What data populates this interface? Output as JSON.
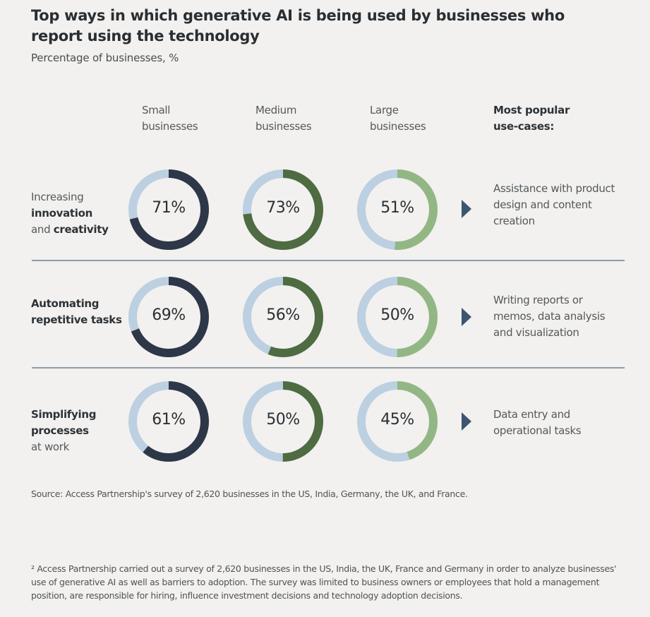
{
  "title": "Top ways in which generative AI is being used by businesses who report using the technology",
  "subtitle": "Percentage of businesses, %",
  "columns": [
    {
      "line1": "Small",
      "line2": "businesses"
    },
    {
      "line1": "Medium",
      "line2": "businesses"
    },
    {
      "line1": "Large",
      "line2": "businesses"
    }
  ],
  "use_case_header": {
    "line1": "Most popular",
    "line2": "use-cases:"
  },
  "rows": [
    {
      "label_parts": [
        {
          "text": "Increasing",
          "bold": false
        },
        {
          "text": "innovation",
          "bold": true
        },
        {
          "text": "and ",
          "bold": false,
          "inline_next": "creativity"
        }
      ],
      "label_lines": [
        "Increasing",
        "innovation",
        "and creativity"
      ],
      "use_case": [
        "Assistance with product",
        "design and content",
        "creation"
      ]
    },
    {
      "label_lines": [
        "Automating",
        "repetitive tasks"
      ],
      "use_case": [
        "Writing reports or",
        "memos, data analysis",
        "and visualization"
      ]
    },
    {
      "label_lines": [
        "Simplifying",
        "processes",
        "at work"
      ],
      "use_case": [
        "Data entry and",
        "operational tasks"
      ]
    }
  ],
  "colors": {
    "small": "#2d3748",
    "medium": "#4e6b42",
    "large": "#93b784",
    "remainder": "#bcd0e2",
    "arrow": "#3d5570",
    "separator": "#8f9ba6",
    "background": "#f2f1ef"
  },
  "chart_data": {
    "type": "donut-grid",
    "title": "Top ways in which generative AI is being used by businesses who report using the technology",
    "subtitle": "Percentage of businesses, %",
    "categories": [
      "Increasing innovation and creativity",
      "Automating repetitive tasks",
      "Simplifying processes at work"
    ],
    "series": [
      {
        "name": "Small businesses",
        "values": [
          71,
          69,
          61
        ],
        "labels": [
          "71%",
          "69%",
          "61%"
        ]
      },
      {
        "name": "Medium businesses",
        "values": [
          73,
          56,
          50
        ],
        "labels": [
          "73%",
          "56%",
          "50%"
        ]
      },
      {
        "name": "Large businesses",
        "values": [
          51,
          50,
          45
        ],
        "labels": [
          "51%",
          "50%",
          "45%"
        ]
      }
    ],
    "unit": "%",
    "max": 100
  },
  "source": "Source: Access Partnership's survey of 2,620 businesses in the US, India, Germany, the UK, and France.",
  "footnote": "² Access Partnership carried out a survey of 2,620 businesses in the US, India, the UK, France and Germany in order to analyze businesses' use of generative AI as well as barriers to adoption. The survey was limited to business owners or employees that hold a management position, are responsible for hiring, influence investment decisions and technology adoption decisions."
}
